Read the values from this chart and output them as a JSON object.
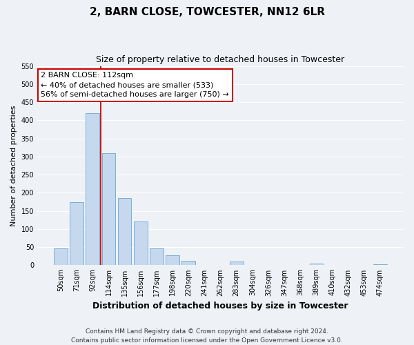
{
  "title": "2, BARN CLOSE, TOWCESTER, NN12 6LR",
  "subtitle": "Size of property relative to detached houses in Towcester",
  "xlabel": "Distribution of detached houses by size in Towcester",
  "ylabel": "Number of detached properties",
  "footnote1": "Contains HM Land Registry data © Crown copyright and database right 2024.",
  "footnote2": "Contains public sector information licensed under the Open Government Licence v3.0.",
  "bar_labels": [
    "50sqm",
    "71sqm",
    "92sqm",
    "114sqm",
    "135sqm",
    "156sqm",
    "177sqm",
    "198sqm",
    "220sqm",
    "241sqm",
    "262sqm",
    "283sqm",
    "304sqm",
    "326sqm",
    "347sqm",
    "368sqm",
    "389sqm",
    "410sqm",
    "432sqm",
    "453sqm",
    "474sqm"
  ],
  "bar_values": [
    47,
    175,
    420,
    310,
    185,
    120,
    47,
    27,
    13,
    0,
    0,
    10,
    0,
    0,
    0,
    0,
    4,
    0,
    0,
    0,
    3
  ],
  "bar_color": "#c5d8ed",
  "bar_edge_color": "#7bafd4",
  "ylim": [
    0,
    550
  ],
  "yticks": [
    0,
    50,
    100,
    150,
    200,
    250,
    300,
    350,
    400,
    450,
    500,
    550
  ],
  "vline_color": "#cc0000",
  "annotation_title": "2 BARN CLOSE: 112sqm",
  "annotation_line1": "← 40% of detached houses are smaller (533)",
  "annotation_line2": "56% of semi-detached houses are larger (750) →",
  "annotation_box_color": "#cc0000",
  "bg_color": "#eef2f7",
  "grid_color": "#ffffff",
  "title_fontsize": 11,
  "subtitle_fontsize": 9,
  "xlabel_fontsize": 9,
  "ylabel_fontsize": 8,
  "tick_fontsize": 7,
  "annotation_fontsize": 8,
  "footnote_fontsize": 6.5
}
